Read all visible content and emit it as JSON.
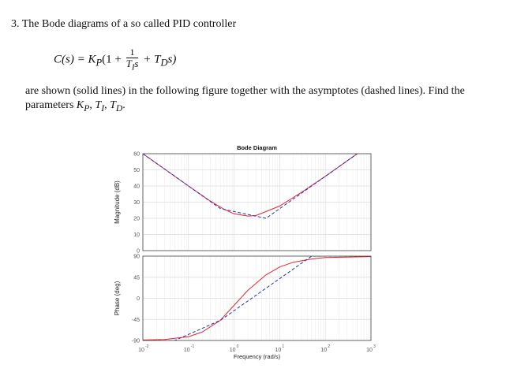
{
  "problem": {
    "number": "3.",
    "text": "The Bode diagrams of a so called PID controller"
  },
  "formula": {
    "lhs": "C(s) = K",
    "sub_p": "P",
    "open": "(1 +",
    "frac_num": "1",
    "frac_den": "T",
    "frac_den_sub": "I",
    "frac_den_s": "s",
    "plus": "+ T",
    "sub_d": "D",
    "tail": "s)"
  },
  "paragraph": {
    "line1": "are shown (solid lines) in the following figure together with the asymptotes (dashed lines). Find the",
    "line2_prefix": "parameters ",
    "kp": "K",
    "kp_sub": "P",
    "ti": "T",
    "ti_sub": "I",
    "td": "T",
    "td_sub": "D",
    "sep": ", ",
    "end": "."
  },
  "chart_data": {
    "type": "line",
    "title": "Bode Diagram",
    "xlabel": "Frequency (rad/s)",
    "x_scale": "log",
    "xlim": [
      0.01,
      1000
    ],
    "x_ticks": [
      {
        "base": "10",
        "exp": "-2",
        "value": 0.01
      },
      {
        "base": "10",
        "exp": "-1",
        "value": 0.1
      },
      {
        "base": "10",
        "exp": "0",
        "value": 1
      },
      {
        "base": "10",
        "exp": "1",
        "value": 10
      },
      {
        "base": "10",
        "exp": "2",
        "value": 100
      },
      {
        "base": "10",
        "exp": "3",
        "value": 1000
      }
    ],
    "grid": true,
    "magnitude": {
      "ylabel": "Magnitude (dB)",
      "ylim": [
        0,
        60
      ],
      "yticks": [
        "0",
        "10",
        "20",
        "30",
        "40",
        "50",
        "60"
      ],
      "yticks_values": [
        0,
        10,
        20,
        30,
        40,
        50,
        60
      ],
      "series": [
        {
          "style": "solid",
          "color": "#e8252b",
          "x": [
            0.01,
            0.03,
            0.1,
            0.3,
            0.6,
            1,
            2,
            3,
            10,
            30,
            100,
            1000
          ],
          "y": [
            60,
            50.5,
            40,
            30.7,
            25.6,
            22.8,
            21.4,
            21.7,
            27.6,
            36.1,
            46,
            66
          ]
        },
        {
          "style": "dashed",
          "color": "#2233bb",
          "x": [
            0.01,
            0.5,
            5,
            1000
          ],
          "y": [
            60,
            26,
            20,
            66
          ]
        }
      ]
    },
    "phase": {
      "ylabel": "Phase (deg)",
      "ylim": [
        -90,
        90
      ],
      "yticks": [
        "-90",
        "-45",
        "0",
        "45",
        "90"
      ],
      "yticks_values": [
        -90,
        -45,
        0,
        45,
        90
      ],
      "series": [
        {
          "style": "solid",
          "color": "#e8252b",
          "x": [
            0.01,
            0.03,
            0.1,
            0.2,
            0.5,
            1,
            2,
            5,
            10,
            20,
            50,
            100,
            1000
          ],
          "y": [
            -89,
            -88,
            -82,
            -72,
            -47,
            -15,
            17,
            50,
            67,
            77,
            84,
            87,
            89
          ]
        },
        {
          "style": "dashed",
          "color": "#2233bb",
          "x": [
            0.01,
            0.05,
            0.5,
            50,
            1000
          ],
          "y": [
            -90,
            -90,
            -47,
            90,
            90
          ]
        }
      ]
    }
  }
}
